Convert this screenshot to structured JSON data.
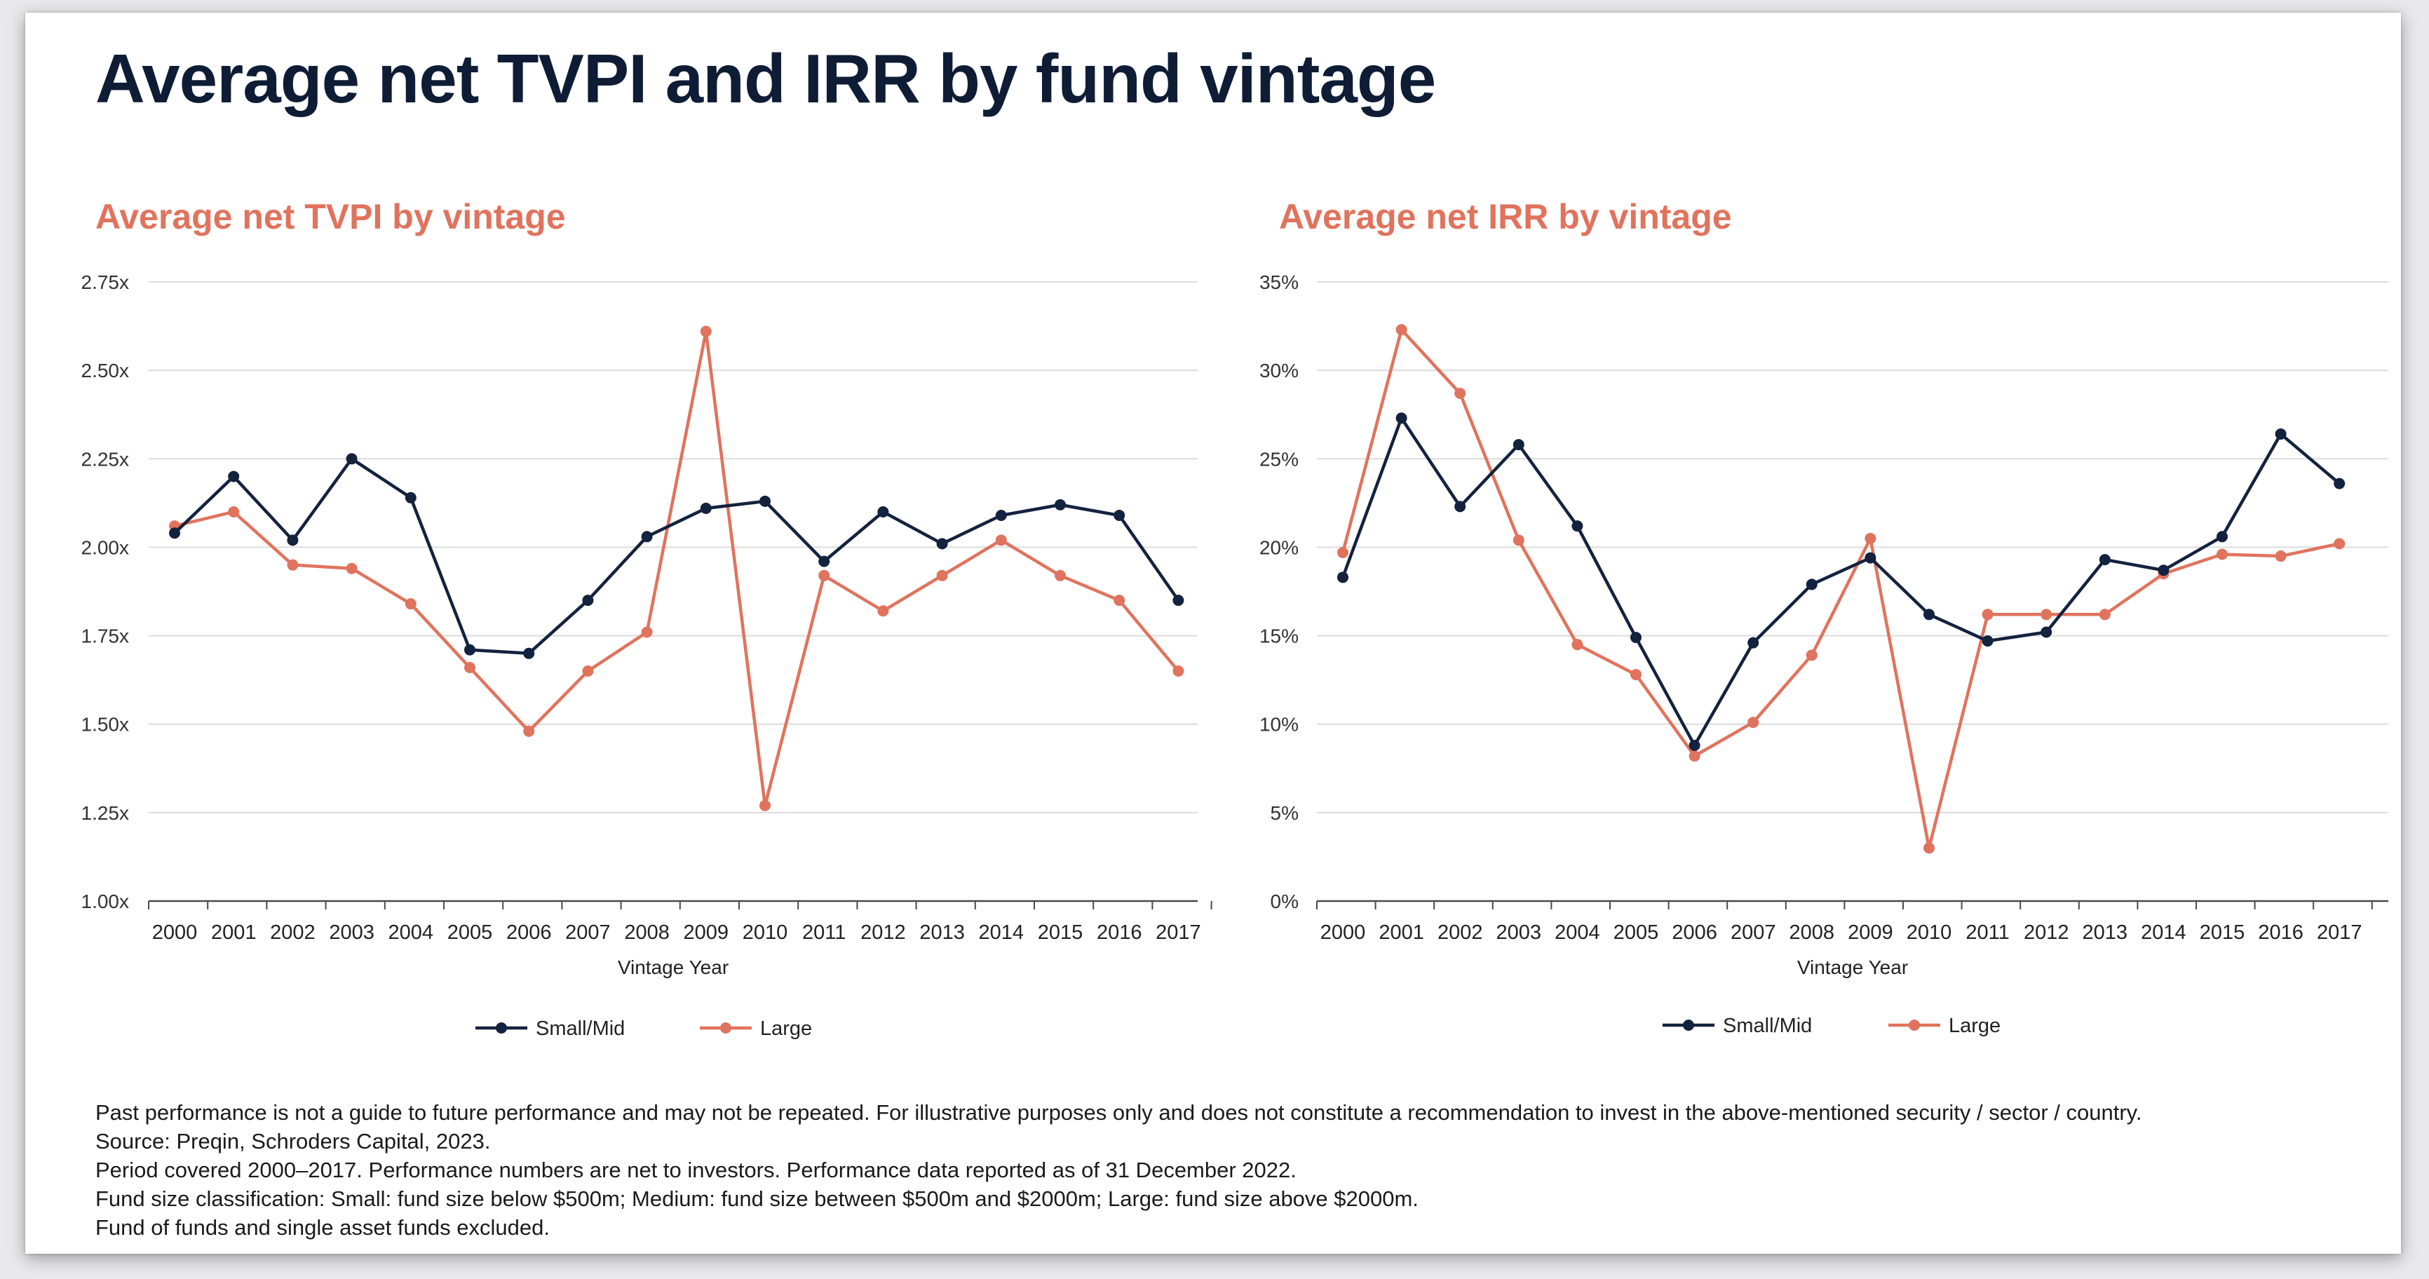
{
  "title": "Average net TVPI and IRR by fund vintage",
  "colors": {
    "small_mid": "#13223e",
    "large": "#e0735d",
    "title": "#0e1c36",
    "grid": "#dcdcdc",
    "axis": "#4a4a4a"
  },
  "chart_data": [
    {
      "type": "line",
      "title": "Average net TVPI by vintage",
      "xlabel": "Vintage Year",
      "ylabel": "",
      "categories": [
        "2000",
        "2001",
        "2002",
        "2003",
        "2004",
        "2005",
        "2006",
        "2007",
        "2008",
        "2009",
        "2010",
        "2011",
        "2012",
        "2013",
        "2014",
        "2015",
        "2016",
        "2017"
      ],
      "ylim": [
        1.0,
        2.75
      ],
      "yticks": [
        "1.00x",
        "1.25x",
        "1.50x",
        "1.75x",
        "2.00x",
        "2.25x",
        "2.50x",
        "2.75x"
      ],
      "legend": "bottom-center",
      "grid": true,
      "series": [
        {
          "name": "Small/Mid",
          "color": "#13223e",
          "values": [
            2.04,
            2.2,
            2.02,
            2.25,
            2.14,
            1.71,
            1.7,
            1.85,
            2.03,
            2.11,
            2.13,
            1.96,
            2.1,
            2.01,
            2.09,
            2.12,
            2.09,
            1.85
          ]
        },
        {
          "name": "Large",
          "color": "#e0735d",
          "values": [
            2.06,
            2.1,
            1.95,
            1.94,
            1.84,
            1.66,
            1.48,
            1.65,
            1.76,
            2.61,
            1.27,
            1.92,
            1.82,
            1.92,
            2.02,
            1.92,
            1.85,
            1.65
          ]
        }
      ]
    },
    {
      "type": "line",
      "title": "Average net IRR by vintage",
      "xlabel": "Vintage Year",
      "ylabel": "",
      "categories": [
        "2000",
        "2001",
        "2002",
        "2003",
        "2004",
        "2005",
        "2006",
        "2007",
        "2008",
        "2009",
        "2010",
        "2011",
        "2012",
        "2013",
        "2014",
        "2015",
        "2016",
        "2017"
      ],
      "ylim": [
        0,
        35
      ],
      "yticks": [
        "0%",
        "5%",
        "10%",
        "15%",
        "20%",
        "25%",
        "30%",
        "35%"
      ],
      "legend": "bottom-center",
      "grid": true,
      "series": [
        {
          "name": "Small/Mid",
          "color": "#13223e",
          "values": [
            18.3,
            27.3,
            22.3,
            25.8,
            21.2,
            14.9,
            8.8,
            14.6,
            17.9,
            19.4,
            16.2,
            14.7,
            15.2,
            19.3,
            18.7,
            20.6,
            26.4,
            23.6
          ]
        },
        {
          "name": "Large",
          "color": "#e0735d",
          "values": [
            19.7,
            32.3,
            28.7,
            20.4,
            14.5,
            12.8,
            8.2,
            10.1,
            13.9,
            20.5,
            3.0,
            16.2,
            16.2,
            16.2,
            18.5,
            19.6,
            19.5,
            20.2
          ]
        }
      ]
    }
  ],
  "notes": [
    "Past performance is not a guide to future performance and may not be repeated. For illustrative purposes only and does not constitute a recommendation to invest in the above-mentioned security / sector / country.",
    "Source: Preqin, Schroders Capital, 2023.",
    "Period covered 2000–2017. Performance numbers are net to investors. Performance data reported as of 31 December 2022.",
    "Fund size classification: Small: fund size below $500m; Medium: fund size between $500m and $2000m; Large: fund size above $2000m.",
    "Fund of funds and single asset funds excluded."
  ]
}
